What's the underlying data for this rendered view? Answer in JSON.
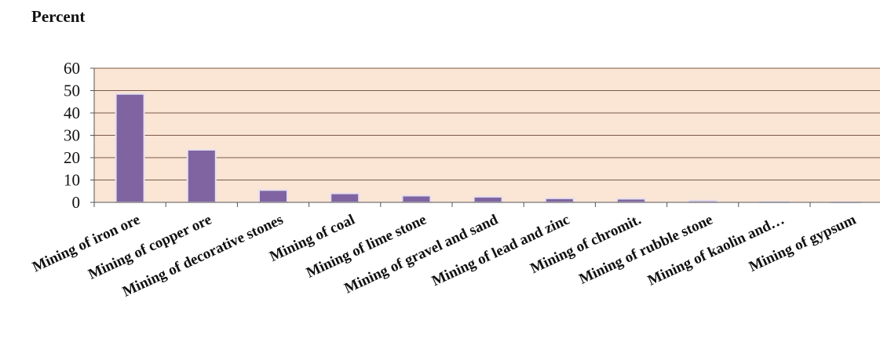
{
  "chart_data": {
    "type": "bar",
    "title": "",
    "xlabel": "",
    "ylabel": "Percent",
    "ylim": [
      0,
      60
    ],
    "yticks": [
      0,
      10,
      20,
      30,
      40,
      50,
      60
    ],
    "grid": true,
    "legend": "none",
    "categories": [
      "Mining of iron ore",
      "Mining of copper ore",
      "Mining of decorative stones",
      "Mining of coal",
      "Mining of lime stone",
      "Mining of gravel and sand",
      "Mining of lead and zinc",
      "Mining of chromit.",
      "Mining of rubble stone",
      "Mining of kaolin and…",
      "Mining of gypsum"
    ],
    "values": [
      48.5,
      23.5,
      5.5,
      4,
      3,
      2.5,
      1.8,
      1.6,
      0.8,
      0.3,
      0.1
    ],
    "colors": {
      "bar_fill": "#8064a2",
      "bar_outline": "#e6e0ee",
      "plot_background": "#fbe5d5",
      "gridline": "#7a5a48"
    }
  }
}
